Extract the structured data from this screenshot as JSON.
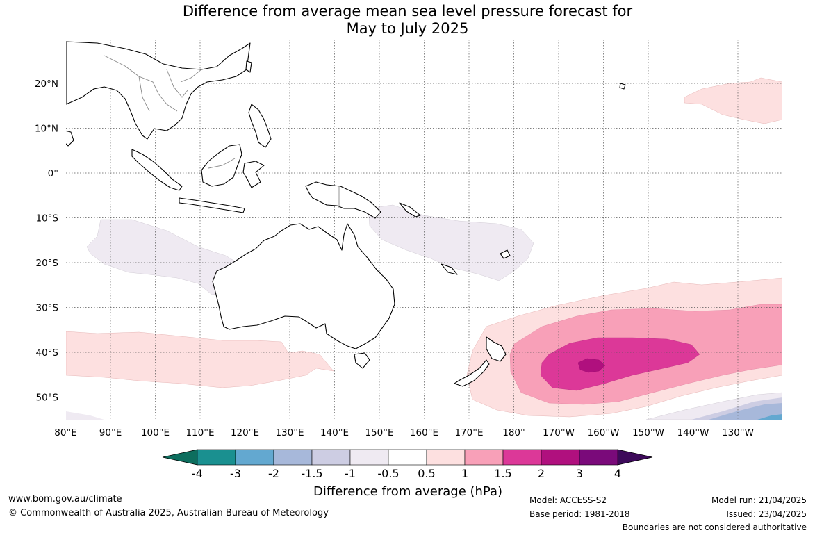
{
  "title": {
    "line1": "Difference from average mean sea level pressure forecast for",
    "line2": "May to July 2025"
  },
  "map": {
    "x_axis_labels": [
      "80°E",
      "90°E",
      "100°E",
      "110°E",
      "120°E",
      "130°E",
      "140°E",
      "150°E",
      "160°E",
      "170°E",
      "180°",
      "170°W",
      "160°W",
      "150°W",
      "140°W",
      "130°W"
    ],
    "y_axis_labels": [
      "20°N",
      "10°N",
      "0°",
      "10°S",
      "20°S",
      "30°S",
      "40°S",
      "50°S"
    ],
    "lon_values": [
      80,
      90,
      100,
      110,
      120,
      130,
      140,
      150,
      160,
      170,
      180,
      190,
      200,
      210,
      220,
      230
    ],
    "lat_values": [
      20,
      10,
      0,
      -10,
      -20,
      -30,
      -40,
      -50
    ],
    "lon_range": [
      80,
      240
    ],
    "lat_range": [
      -55,
      30
    ],
    "gridlines": "dotted",
    "land_color": "#ffffff",
    "coastline_color": "#000000",
    "border_color": "#888888"
  },
  "colorbar": {
    "title": "Difference from average (hPa)",
    "tick_labels": [
      "-4",
      "-3",
      "-2",
      "-1.5",
      "-1",
      "-0.5",
      "0.5",
      "1",
      "1.5",
      "2",
      "3",
      "4"
    ],
    "tick_values": [
      -4,
      -3,
      -2,
      -1.5,
      -1,
      -0.5,
      0.5,
      1,
      1.5,
      2,
      3,
      4
    ],
    "under_color": "#0d6e5e",
    "over_color": "#3d0a5a",
    "colors": [
      "#1a9090",
      "#63a8d0",
      "#a7b8da",
      "#cdcde3",
      "#efeaf2",
      "#ffffff",
      "#fde0e0",
      "#f8a0b8",
      "#dc3898",
      "#b0107e",
      "#7a0a7a"
    ]
  },
  "footer": {
    "website": "www.bom.gov.au/climate",
    "copyright": "© Commonwealth of Australia 2025, Australian Bureau of Meteorology",
    "model": "Model: ACCESS-S2",
    "base_period": "Base period: 1981-2018",
    "model_run": "Model run: 21/04/2025",
    "issued": "Issued: 23/04/2025",
    "disclaimer": "Boundaries are not considered authoritative"
  }
}
